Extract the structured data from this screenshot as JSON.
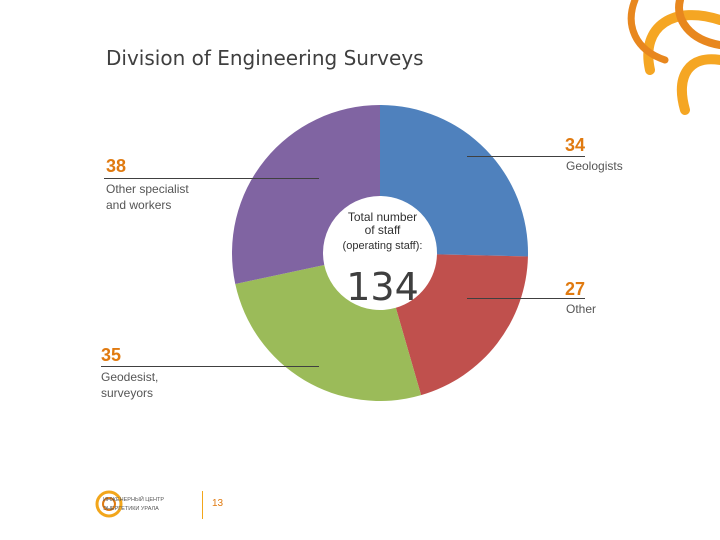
{
  "title": "Division of Engineering Surveys",
  "center": {
    "label_line1": "Total number",
    "label_line2": "of staff",
    "label_line3": "(operating staff):",
    "value": "134"
  },
  "chart_data": {
    "type": "pie",
    "total": 134,
    "slices": [
      {
        "value": 34,
        "label": "Geologists",
        "color": "#4f81bd"
      },
      {
        "value": 27,
        "label": "Other",
        "color": "#c0504d"
      },
      {
        "value": 35,
        "label": "Geodesist, surveyors",
        "color": "#9bbb59"
      },
      {
        "value": 38,
        "label": "Other specialist and workers",
        "color": "#8064a2"
      }
    ]
  },
  "labels": {
    "geologists": {
      "value": "34",
      "text": "Geologists"
    },
    "other": {
      "value": "27",
      "text": "Other"
    },
    "geodesist": {
      "value": "35",
      "text_line1": "Geodesist,",
      "text_line2": "surveyors"
    },
    "specialist": {
      "value": "38",
      "text_line1": "Other specialist",
      "text_line2": "and workers"
    }
  },
  "footer": {
    "page_number": "13",
    "logo_line1": "ИНЖЕНЕРНЫЙ ЦЕНТР",
    "logo_line2": "ЭНЕРГЕТИКИ УРАЛА"
  }
}
